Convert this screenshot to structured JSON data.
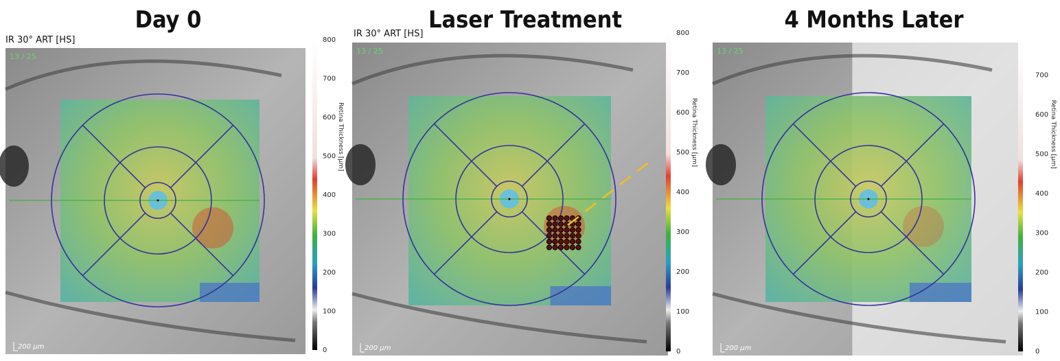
{
  "panels": [
    {
      "title": "Day 0",
      "header": "IR 30° ART [HS]",
      "overlay": "13 / 25",
      "scale": "200 µm",
      "colorbar": {
        "label": "Retina Thickness [µm]",
        "ticks": [
          "0",
          "100",
          "200",
          "300",
          "400",
          "500",
          "600",
          "700",
          "800"
        ]
      }
    },
    {
      "title": "Laser Treatment",
      "header": "IR 30° ART [HS]",
      "overlay": "13 / 25",
      "scale": "200 µm",
      "colorbar": {
        "label": "Retina Thickness [µm]",
        "ticks": [
          "0",
          "100",
          "200",
          "300",
          "400",
          "500",
          "600",
          "700",
          "800"
        ]
      }
    },
    {
      "title": "4 Months Later",
      "overlay": "13 / 25",
      "scale": "200 µm",
      "colorbar": {
        "label": "Retina Thickness [µm]",
        "ticks": [
          "0",
          "100",
          "200",
          "300",
          "400",
          "500",
          "600",
          "700"
        ]
      }
    }
  ]
}
